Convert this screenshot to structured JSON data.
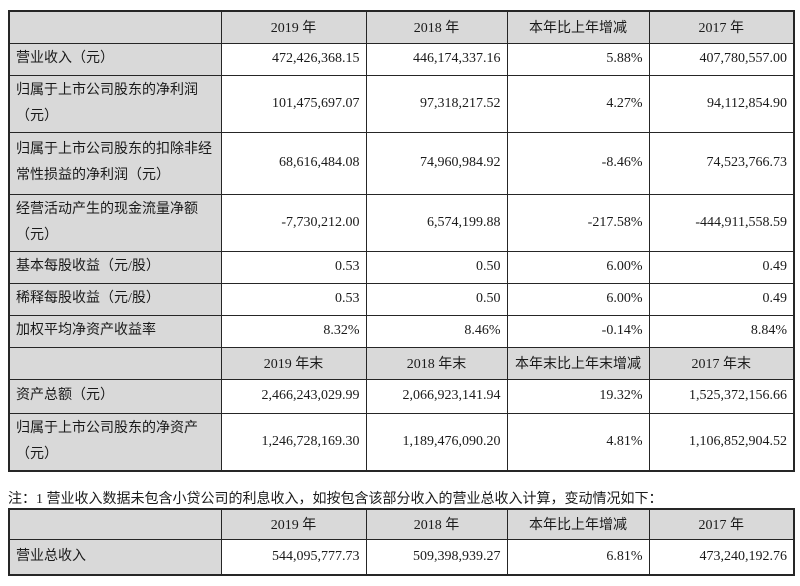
{
  "colors": {
    "shade_bg": "#d9d9d9",
    "cell_bg": "#ffffff",
    "border": "#262626",
    "text": "#1a1a1a"
  },
  "main_table": {
    "sections": [
      {
        "header": [
          "",
          "2019 年",
          "2018 年",
          "本年比上年增减",
          "2017 年"
        ],
        "rows": [
          {
            "label": "营业收入（元）",
            "values": [
              "472,426,368.15",
              "446,174,337.16",
              "5.88%",
              "407,780,557.00"
            ]
          },
          {
            "label": "归属于上市公司股东的净利润（元）",
            "values": [
              "101,475,697.07",
              "97,318,217.52",
              "4.27%",
              "94,112,854.90"
            ]
          },
          {
            "label": "归属于上市公司股东的扣除非经常性损益的净利润（元）",
            "values": [
              "68,616,484.08",
              "74,960,984.92",
              "-8.46%",
              "74,523,766.73"
            ]
          },
          {
            "label": "经营活动产生的现金流量净额（元）",
            "values": [
              "-7,730,212.00",
              "6,574,199.88",
              "-217.58%",
              "-444,911,558.59"
            ]
          },
          {
            "label": "基本每股收益（元/股）",
            "values": [
              "0.53",
              "0.50",
              "6.00%",
              "0.49"
            ]
          },
          {
            "label": "稀释每股收益（元/股）",
            "values": [
              "0.53",
              "0.50",
              "6.00%",
              "0.49"
            ]
          },
          {
            "label": "加权平均净资产收益率",
            "values": [
              "8.32%",
              "8.46%",
              "-0.14%",
              "8.84%"
            ]
          }
        ]
      },
      {
        "header": [
          "",
          "2019 年末",
          "2018 年末",
          "本年末比上年末增减",
          "2017 年末"
        ],
        "rows": [
          {
            "label": "资产总额（元）",
            "values": [
              "2,466,243,029.99",
              "2,066,923,141.94",
              "19.32%",
              "1,525,372,156.66"
            ]
          },
          {
            "label": "归属于上市公司股东的净资产（元）",
            "values": [
              "1,246,728,169.30",
              "1,189,476,090.20",
              "4.81%",
              "1,106,852,904.52"
            ]
          }
        ]
      }
    ]
  },
  "note": "注：1 营业收入数据未包含小贷公司的利息收入，如按包含该部分收入的营业总收入计算，变动情况如下：",
  "second_table": {
    "sections": [
      {
        "header": [
          "",
          "2019 年",
          "2018 年",
          "本年比上年增减",
          "2017 年"
        ],
        "rows": [
          {
            "label": "营业总收入",
            "values": [
              "544,095,777.73",
              "509,398,939.27",
              "6.81%",
              "473,240,192.76"
            ]
          }
        ]
      }
    ]
  }
}
